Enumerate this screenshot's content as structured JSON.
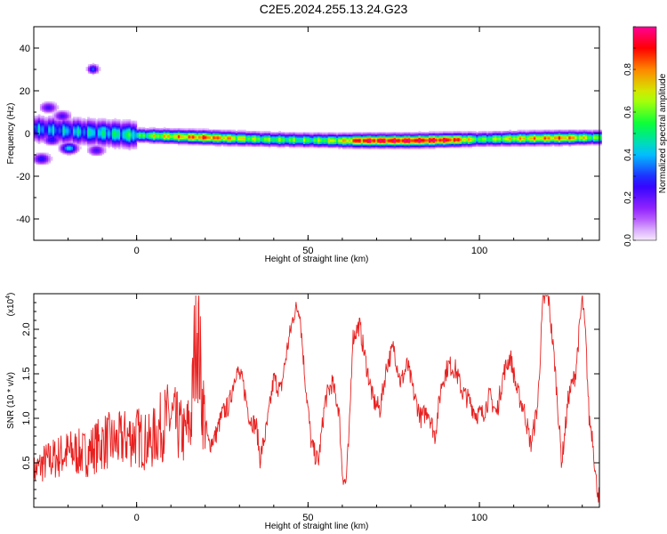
{
  "figure": {
    "title": "C2E5.2024.255.13.24.G23"
  },
  "colors": {
    "snr_line": "#e8201f",
    "colorbar_stops": [
      "#ff00ff",
      "#0000ff",
      "#00ffff",
      "#00ff00",
      "#ffff00",
      "#ff0000",
      "#ff00a0"
    ]
  },
  "chart_data": [
    {
      "type": "heatmap",
      "title": "",
      "xlabel": "Height of straight line (km)",
      "ylabel": "Frequency (Hz)",
      "xlim": [
        -30,
        135
      ],
      "ylim": [
        -50,
        50
      ],
      "xticks": [
        0,
        50,
        100
      ],
      "yticks": [
        -40,
        -20,
        0,
        20,
        40
      ],
      "colorbar": {
        "label": "Normalized spectral amplitude",
        "range": [
          0.0,
          1.0
        ],
        "ticks": [
          "0.0",
          "0.2",
          "0.4",
          "0.6",
          "0.8"
        ]
      },
      "features": {
        "ridge_frequency_points_hz": [
          [
            -30,
            2
          ],
          [
            -20,
            1
          ],
          [
            -10,
            0
          ],
          [
            0,
            -1
          ],
          [
            20,
            -2
          ],
          [
            40,
            -3
          ],
          [
            60,
            -3.5
          ],
          [
            80,
            -3.5
          ],
          [
            95,
            -3
          ],
          [
            110,
            -2.5
          ],
          [
            135,
            -2
          ]
        ],
        "ridge_amplitude_points": [
          [
            -30,
            0.35
          ],
          [
            -15,
            0.4
          ],
          [
            0,
            0.5
          ],
          [
            5,
            0.65
          ],
          [
            20,
            0.85
          ],
          [
            35,
            0.6
          ],
          [
            50,
            0.55
          ],
          [
            60,
            0.7
          ],
          [
            65,
            0.92
          ],
          [
            80,
            0.95
          ],
          [
            92,
            0.9
          ],
          [
            100,
            0.55
          ],
          [
            110,
            0.7
          ],
          [
            125,
            0.8
          ],
          [
            135,
            0.55
          ]
        ],
        "blobs": [
          [
            -30,
            3,
            0.35
          ],
          [
            -28,
            -12,
            0.3
          ],
          [
            -26,
            12,
            0.25
          ],
          [
            -25,
            -3,
            0.3
          ],
          [
            -20,
            -7,
            0.45
          ],
          [
            -18,
            3,
            0.3
          ],
          [
            -14,
            -2,
            0.35
          ],
          [
            -13,
            30,
            0.35
          ],
          [
            -10,
            2,
            0.45
          ],
          [
            -6,
            1,
            0.3
          ],
          [
            -3,
            0,
            0.35
          ],
          [
            -12,
            -8,
            0.25
          ],
          [
            -22,
            8,
            0.25
          ]
        ]
      }
    },
    {
      "type": "line",
      "title": "",
      "xlabel": "Height of straight line (km)",
      "ylabel": "SNR (10 * v/v)",
      "y_multiplier_label": "(x10",
      "y_multiplier_exp": "4",
      "xlim": [
        -30,
        135
      ],
      "ylim": [
        0,
        2.4
      ],
      "xticks": [
        0,
        50,
        100
      ],
      "yticks": [
        0.5,
        1.0,
        1.5,
        2.0
      ],
      "ytick_labels": [
        "0.5",
        "1.0",
        "1.5",
        "2.0"
      ],
      "series": [
        {
          "name": "",
          "x": [
            -30,
            -27,
            -24,
            -21,
            -18,
            -15,
            -12,
            -9,
            -6,
            -3,
            0,
            2,
            4,
            6,
            8,
            10,
            12,
            14,
            16,
            17.5,
            19,
            21,
            23,
            25,
            27,
            29,
            31,
            33,
            35,
            36,
            38,
            40,
            42,
            44,
            46,
            47.5,
            49,
            51,
            53,
            55,
            57,
            59,
            60,
            61,
            62,
            63,
            65,
            67,
            69,
            71,
            73,
            75,
            77,
            79,
            81,
            83,
            85,
            87,
            89,
            91,
            93,
            95,
            97,
            99,
            101,
            103,
            105,
            107,
            109,
            111,
            113,
            115,
            117,
            118.5,
            120,
            122,
            124,
            126,
            128,
            130,
            131,
            132,
            133,
            134,
            135
          ],
          "values": [
            0.4,
            0.5,
            0.55,
            0.6,
            0.62,
            0.6,
            0.68,
            0.75,
            0.72,
            0.78,
            0.8,
            0.75,
            0.72,
            0.85,
            0.95,
            1.0,
            0.9,
            0.8,
            1.0,
            2.3,
            1.25,
            0.7,
            0.8,
            1.05,
            1.15,
            1.55,
            1.4,
            1.0,
            0.9,
            0.55,
            0.9,
            1.45,
            1.3,
            1.8,
            2.2,
            2.25,
            1.5,
            0.7,
            0.5,
            1.2,
            1.4,
            1.1,
            0.4,
            0.25,
            0.8,
            1.9,
            2.05,
            1.6,
            1.2,
            1.1,
            1.6,
            1.8,
            1.4,
            1.6,
            1.25,
            1.0,
            1.1,
            0.8,
            1.4,
            1.6,
            1.55,
            1.3,
            1.2,
            1.05,
            1.05,
            1.25,
            1.05,
            1.5,
            1.7,
            1.3,
            1.1,
            0.7,
            1.15,
            2.3,
            2.4,
            1.6,
            0.5,
            1.25,
            1.5,
            2.35,
            1.9,
            1.0,
            0.8,
            0.3,
            0.1
          ]
        }
      ]
    }
  ]
}
